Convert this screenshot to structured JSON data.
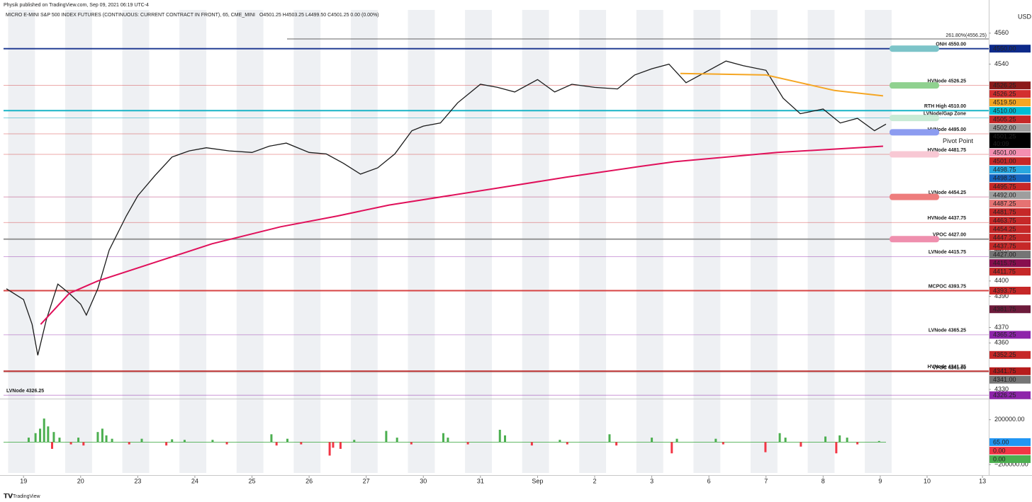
{
  "publisher": "Physik published on TradingView.com, Sep 09, 2021 06:19 UTC-4",
  "footer": "TradingView",
  "currency": "USD",
  "chart_data": [
    {
      "type": "line",
      "title": "MICRO E-MINI S&P 500 INDEX FUTURES (CONTINUOUS: CURRENT CONTRACT IN FRONT), 65, CME_MINI",
      "subtitle": "O4501.25 H4503.25 L4499.50 C4501.25 0.00 (0.00%)",
      "xlim": [
        -0.35,
        16.9
      ],
      "xticks": [
        {
          "value": 0,
          "label": "19"
        },
        {
          "value": 1,
          "label": "20"
        },
        {
          "value": 2,
          "label": "23"
        },
        {
          "value": 3,
          "label": "24"
        },
        {
          "value": 4,
          "label": "25"
        },
        {
          "value": 5,
          "label": "26"
        },
        {
          "value": 6,
          "label": "27"
        },
        {
          "value": 7,
          "label": "30"
        },
        {
          "value": 8,
          "label": "31"
        },
        {
          "value": 9,
          "label": "Sep"
        },
        {
          "value": 10,
          "label": "2"
        },
        {
          "value": 11,
          "label": "3"
        },
        {
          "value": 12,
          "label": "6"
        },
        {
          "value": 13,
          "label": "7"
        },
        {
          "value": 14,
          "label": "8"
        },
        {
          "value": 15,
          "label": "9"
        },
        {
          "value": 15.82,
          "label": "10"
        },
        {
          "value": 16.79,
          "label": "13"
        }
      ],
      "ylim": [
        4324.5,
        4575
      ],
      "yticks": [
        4330,
        4360,
        4370,
        4390,
        4400,
        4420,
        4540,
        4560
      ],
      "series": [
        {
          "color": "#1a1a1a",
          "x": [
            -0.3,
            0,
            0.15,
            0.25,
            0.4,
            0.6,
            0.8,
            1.0,
            1.1,
            1.3,
            1.5,
            1.8,
            2.0,
            2.3,
            2.6,
            2.9,
            3.2,
            3.6,
            4.0,
            4.3,
            4.6,
            5.0,
            5.3,
            5.6,
            5.9,
            6.2,
            6.5,
            6.8,
            7.0,
            7.3,
            7.6,
            8.0,
            8.3,
            8.6,
            9.0,
            9.3,
            9.6,
            10.0,
            10.4,
            10.7,
            11.0,
            11.3,
            11.6,
            12.0,
            12.3,
            12.6,
            13.0,
            13.3,
            13.6,
            14.0,
            14.3,
            14.6,
            14.9,
            15.1
          ],
          "values": [
            4395,
            4388,
            4372,
            4352,
            4375,
            4398,
            4392,
            4385,
            4378,
            4395,
            4420,
            4442,
            4455,
            4468,
            4480,
            4484,
            4486,
            4484,
            4483,
            4487,
            4489,
            4483,
            4482,
            4476,
            4469,
            4473,
            4482,
            4497,
            4500,
            4502,
            4515,
            4527,
            4525,
            4522,
            4530,
            4522,
            4527,
            4525,
            4524,
            4533,
            4537,
            4540,
            4528,
            4536,
            4542,
            4539,
            4536,
            4518,
            4508,
            4511,
            4502,
            4505,
            4497,
            4501.25
          ]
        },
        {
          "color": "#e0105a",
          "x": [
            0.3,
            0.8,
            1.3,
            2.3,
            3.3,
            4.5,
            5.5,
            6.4,
            8.3,
            9.5,
            10.8,
            11.4,
            13.2,
            15.05
          ],
          "values": [
            4372,
            4392,
            4400,
            4412,
            4424,
            4435,
            4442,
            4449,
            4460,
            4467,
            4474,
            4477,
            4483,
            4487
          ]
        },
        {
          "color": "#f5a623",
          "x": [
            11.5,
            13.0,
            13.6,
            14.2,
            15.05
          ],
          "values": [
            4534,
            4533,
            4528,
            4523,
            4519.5
          ]
        }
      ],
      "fib": {
        "value": 4556.25,
        "label": "261.80%(4556.25)",
        "color": "#333333"
      },
      "levels": [
        {
          "value": 4550,
          "label": "ONH 4550.00",
          "color": "#0d2a8a",
          "style": "thick"
        },
        {
          "value": 4526.25,
          "label": "HVNode 4526.25",
          "color": "#d32f2f"
        },
        {
          "value": 4510,
          "label": "RTH High 4510.00",
          "color": "#00acc1",
          "style": "thick"
        },
        {
          "value": 4505.25,
          "label": "LVNode/Gap Zone",
          "color": "#00acc1"
        },
        {
          "value": 4495,
          "label": "HVNode 4495.00",
          "color": "#d32f2f"
        },
        {
          "value": 4481.75,
          "label": "HVNode 4481.75",
          "color": "#d32f2f"
        },
        {
          "value": 4454.25,
          "label": "LVNode 4454.25",
          "color": "#ad1457"
        },
        {
          "value": 4437.75,
          "label": "HVNode 4437.75",
          "color": "#d32f2f"
        },
        {
          "value": 4427,
          "label": "VPOC 4427.00",
          "color": "#8a8a8a",
          "style": "thick"
        },
        {
          "value": 4415.75,
          "label": "LVNode 4415.75",
          "color": "#8e24aa"
        },
        {
          "value": 4393.75,
          "label": "MCPOC 4393.75",
          "color": "#d32f2f",
          "style": "thick"
        },
        {
          "value": 4365.25,
          "label": "LVNode 4365.25",
          "color": "#8e24aa"
        },
        {
          "value": 4341.75,
          "label": "HVNode 4341.75",
          "color": "#b71c1c",
          "style": "thick"
        },
        {
          "value": 4341,
          "label": "VPOC 4341.00",
          "color": "#9e9e9e"
        },
        {
          "value": 4326.25,
          "label": "LVNode 4326.25",
          "color": "#8e24aa",
          "label_align": "left"
        }
      ],
      "zones": [
        {
          "value": 4550,
          "color": "#7cc4c9"
        },
        {
          "value": 4526.25,
          "color": "#8fd18f"
        },
        {
          "value": 4505.25,
          "color": "#c8ebd5"
        },
        {
          "value": 4496,
          "color": "#8c9cf0",
          "label": "Pivot Point"
        },
        {
          "value": 4481.75,
          "color": "#f8c8d4"
        },
        {
          "value": 4454.25,
          "color": "#ee7d7d"
        },
        {
          "value": 4427,
          "color": "#ef8fae"
        }
      ],
      "price_tags": [
        {
          "value": 4550,
          "label": "4550.00",
          "color": "#0d2a8a"
        },
        {
          "value": 4526.25,
          "label": "4526.25",
          "color": "#8b1a1a"
        },
        {
          "value": 4526.25,
          "label": "4526.25",
          "color": "#d32f2f"
        },
        {
          "value": 4519.5,
          "label": "4519.50",
          "color": "#f5a623"
        },
        {
          "value": 4510,
          "label": "4510.00",
          "color": "#00bcd4"
        },
        {
          "value": 4505.25,
          "label": "4505.25",
          "color": "#c62828"
        },
        {
          "value": 4502,
          "label": "4502.00",
          "color": "#9e9e9e"
        },
        {
          "value": 4501.25,
          "label": "4501.25",
          "color": "#000000",
          "countdown": "40:09"
        },
        {
          "value": 4501,
          "label": "4501.00",
          "color": "#f48fb1"
        },
        {
          "value": 4501,
          "label": "4501.00",
          "color": "#c62828"
        },
        {
          "value": 4498.75,
          "label": "4498.75",
          "color": "#29a8e0"
        },
        {
          "value": 4498.25,
          "label": "4498.25",
          "color": "#1565c0"
        },
        {
          "value": 4495.75,
          "label": "4495.75",
          "color": "#c62828"
        },
        {
          "value": 4492,
          "label": "4492.00",
          "color": "#9e9e9e"
        },
        {
          "value": 4487.25,
          "label": "4487.25",
          "color": "#e57373"
        },
        {
          "value": 4481.75,
          "label": "4481.75",
          "color": "#c62828"
        },
        {
          "value": 4463.75,
          "label": "4463.75",
          "color": "#c62828"
        },
        {
          "value": 4454.25,
          "label": "4454.25",
          "color": "#c62828"
        },
        {
          "value": 4447.25,
          "label": "4447.25",
          "color": "#c62828"
        },
        {
          "value": 4437.75,
          "label": "4437.75",
          "color": "#c62828"
        },
        {
          "value": 4427,
          "label": "4427.00",
          "color": "#757575"
        },
        {
          "value": 4415.75,
          "label": "4415.75",
          "color": "#880e4f"
        },
        {
          "value": 4411.75,
          "label": "4411.75",
          "color": "#c62828"
        },
        {
          "value": 4393.75,
          "label": "4393.75",
          "color": "#c62828"
        },
        {
          "value": 4381.75,
          "label": "4381.75",
          "color": "#6d1b3b"
        },
        {
          "value": 4365.25,
          "label": "4365.25",
          "color": "#8e24aa"
        },
        {
          "value": 4352.25,
          "label": "4352.25",
          "color": "#c62828"
        },
        {
          "value": 4341.75,
          "label": "4341.75",
          "color": "#b71c1c"
        },
        {
          "value": 4341,
          "label": "4341.00",
          "color": "#757575"
        },
        {
          "value": 4326.25,
          "label": "4326.25",
          "color": "#8e24aa"
        }
      ]
    },
    {
      "type": "bar",
      "xlim": [
        -0.35,
        16.9
      ],
      "ylim": [
        -275000,
        368750
      ],
      "yticks": [
        {
          "value": 200000,
          "label": "200000.00"
        },
        {
          "value": -200000,
          "label": "−200000.00"
        }
      ],
      "up_color": "#4caf50",
      "down_color": "#f23645",
      "x": [
        0.09,
        0.21,
        0.29,
        0.36,
        0.43,
        0.5,
        0.53,
        0.63,
        0.83,
        0.96,
        1.05,
        1.3,
        1.38,
        1.45,
        1.55,
        1.85,
        2.07,
        2.5,
        2.6,
        2.82,
        3.31,
        3.56,
        4.34,
        4.43,
        4.62,
        4.86,
        5.36,
        5.42,
        5.55,
        5.79,
        6.35,
        6.54,
        6.79,
        7.35,
        7.43,
        7.78,
        8.34,
        8.43,
        8.9,
        9.39,
        9.52,
        10.26,
        10.38,
        11.0,
        11.35,
        11.44,
        12.12,
        12.25,
        12.99,
        13.24,
        13.34,
        13.61,
        14.04,
        14.23,
        14.29,
        14.42,
        14.6,
        14.98
      ],
      "values": [
        40000,
        80000,
        120000,
        210000,
        140000,
        -60000,
        90000,
        40000,
        -20000,
        40000,
        -30000,
        90000,
        120000,
        60000,
        30000,
        -20000,
        30000,
        -30000,
        25000,
        20000,
        20000,
        -20000,
        70000,
        -30000,
        30000,
        -20000,
        -120000,
        -50000,
        -60000,
        20000,
        100000,
        40000,
        -20000,
        80000,
        40000,
        -20000,
        110000,
        60000,
        -30000,
        20000,
        -20000,
        70000,
        -30000,
        40000,
        -100000,
        30000,
        30000,
        -20000,
        -90000,
        80000,
        40000,
        -40000,
        50000,
        -100000,
        60000,
        40000,
        -20000,
        10000
      ],
      "price_tags": [
        {
          "value": 65,
          "label": "65.00",
          "color": "#2196f3"
        },
        {
          "value": 0,
          "label": "0.00",
          "color": "#f23645"
        },
        {
          "value": 0,
          "label": "0.00",
          "color": "#4caf50"
        }
      ]
    }
  ]
}
